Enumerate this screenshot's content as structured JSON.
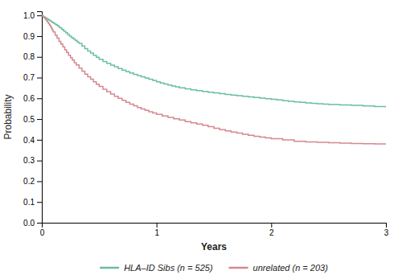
{
  "chart_data": {
    "type": "line",
    "line_style": "step",
    "x_label": "Years",
    "y_label": "Probability",
    "xlim": [
      0,
      3
    ],
    "ylim": [
      0.0,
      1.02
    ],
    "xticks": [
      0,
      1,
      2,
      3
    ],
    "yticks": [
      {
        "value": 0.0,
        "label": "0.0"
      },
      {
        "value": 0.1,
        "label": "0.1"
      },
      {
        "value": 0.2,
        "label": "0.2"
      },
      {
        "value": 0.3,
        "label": "0.3"
      },
      {
        "value": 0.4,
        "label": "0.4"
      },
      {
        "value": 0.5,
        "label": "0.5"
      },
      {
        "value": 0.6,
        "label": "0.6"
      },
      {
        "value": 0.7,
        "label": "0.7"
      },
      {
        "value": 0.8,
        "label": "0.8"
      },
      {
        "value": 0.9,
        "label": "0.9"
      },
      {
        "value": 1.0,
        "label": "1.0"
      }
    ],
    "grid": false,
    "legend": "bottom",
    "series": [
      {
        "name": "HLA–ID Sibs (n = 525)",
        "color": "#6abf9e",
        "x": [
          0.0,
          0.008,
          0.016,
          0.025,
          0.033,
          0.041,
          0.05,
          0.058,
          0.066,
          0.075,
          0.083,
          0.091,
          0.1,
          0.108,
          0.116,
          0.125,
          0.133,
          0.141,
          0.15,
          0.158,
          0.175,
          0.191,
          0.208,
          0.225,
          0.241,
          0.258,
          0.275,
          0.291,
          0.308,
          0.325,
          0.35,
          0.375,
          0.4,
          0.425,
          0.45,
          0.475,
          0.5,
          0.533,
          0.566,
          0.6,
          0.633,
          0.666,
          0.7,
          0.733,
          0.766,
          0.8,
          0.833,
          0.866,
          0.9,
          0.933,
          0.966,
          1.0,
          1.033,
          1.066,
          1.1,
          1.133,
          1.166,
          1.2,
          1.25,
          1.3,
          1.35,
          1.4,
          1.45,
          1.5,
          1.55,
          1.6,
          1.65,
          1.7,
          1.75,
          1.8,
          1.85,
          1.9,
          1.95,
          2.0,
          2.05,
          2.1,
          2.15,
          2.2,
          2.25,
          2.3,
          2.35,
          2.4,
          2.45,
          2.5,
          2.6,
          2.7,
          2.8,
          2.9,
          3.0
        ],
        "values": [
          1.0,
          0.997,
          0.994,
          0.991,
          0.988,
          0.985,
          0.982,
          0.979,
          0.976,
          0.973,
          0.97,
          0.967,
          0.964,
          0.961,
          0.958,
          0.955,
          0.952,
          0.948,
          0.944,
          0.94,
          0.932,
          0.924,
          0.916,
          0.908,
          0.9,
          0.893,
          0.886,
          0.879,
          0.872,
          0.865,
          0.852,
          0.84,
          0.828,
          0.818,
          0.808,
          0.798,
          0.788,
          0.778,
          0.769,
          0.76,
          0.752,
          0.744,
          0.736,
          0.729,
          0.722,
          0.716,
          0.71,
          0.704,
          0.698,
          0.692,
          0.686,
          0.68,
          0.674,
          0.669,
          0.664,
          0.659,
          0.655,
          0.651,
          0.646,
          0.641,
          0.637,
          0.633,
          0.629,
          0.626,
          0.622,
          0.619,
          0.616,
          0.613,
          0.61,
          0.607,
          0.604,
          0.601,
          0.598,
          0.595,
          0.592,
          0.589,
          0.586,
          0.583,
          0.581,
          0.578,
          0.576,
          0.574,
          0.572,
          0.57,
          0.568,
          0.566,
          0.563,
          0.56,
          0.556
        ]
      },
      {
        "name": "unrelated (n = 203)",
        "color": "#d4888e",
        "x": [
          0.0,
          0.008,
          0.016,
          0.025,
          0.033,
          0.041,
          0.05,
          0.058,
          0.066,
          0.075,
          0.083,
          0.091,
          0.1,
          0.116,
          0.133,
          0.15,
          0.166,
          0.183,
          0.2,
          0.216,
          0.233,
          0.25,
          0.266,
          0.283,
          0.3,
          0.325,
          0.35,
          0.375,
          0.4,
          0.425,
          0.45,
          0.475,
          0.5,
          0.533,
          0.566,
          0.6,
          0.633,
          0.666,
          0.7,
          0.733,
          0.766,
          0.8,
          0.833,
          0.866,
          0.9,
          0.933,
          0.966,
          1.0,
          1.05,
          1.1,
          1.15,
          1.2,
          1.25,
          1.3,
          1.35,
          1.4,
          1.45,
          1.5,
          1.55,
          1.6,
          1.65,
          1.7,
          1.75,
          1.8,
          1.85,
          1.9,
          1.95,
          2.0,
          2.1,
          2.2,
          2.3,
          2.4,
          2.5,
          2.6,
          2.7,
          2.8,
          2.9,
          3.0
        ],
        "values": [
          1.0,
          0.995,
          0.99,
          0.985,
          0.98,
          0.974,
          0.968,
          0.961,
          0.954,
          0.946,
          0.938,
          0.929,
          0.92,
          0.905,
          0.89,
          0.875,
          0.862,
          0.848,
          0.834,
          0.821,
          0.808,
          0.796,
          0.784,
          0.772,
          0.761,
          0.746,
          0.731,
          0.717,
          0.704,
          0.692,
          0.68,
          0.668,
          0.657,
          0.644,
          0.632,
          0.621,
          0.61,
          0.6,
          0.59,
          0.581,
          0.572,
          0.564,
          0.556,
          0.549,
          0.542,
          0.535,
          0.529,
          0.523,
          0.515,
          0.508,
          0.501,
          0.495,
          0.488,
          0.482,
          0.476,
          0.47,
          0.463,
          0.456,
          0.449,
          0.443,
          0.437,
          0.432,
          0.427,
          0.422,
          0.417,
          0.413,
          0.409,
          0.405,
          0.399,
          0.393,
          0.39,
          0.388,
          0.386,
          0.384,
          0.382,
          0.381,
          0.38,
          0.379
        ]
      }
    ]
  }
}
